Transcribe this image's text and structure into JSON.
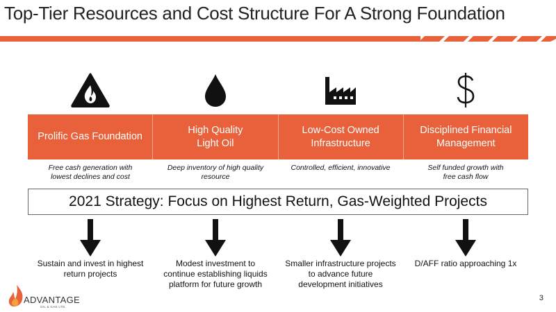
{
  "slide": {
    "title": "Top-Tier Resources and Cost Structure For A Strong Foundation",
    "page_number": "3"
  },
  "colors": {
    "accent": "#e8613a",
    "stripe": "#e8613a"
  },
  "pillars": [
    {
      "icon": "fire-warning-icon",
      "label": "Prolific Gas Foundation",
      "caption": "Free cash generation with\nlowest declines and cost"
    },
    {
      "icon": "oil-drop-icon",
      "label": "High Quality\nLight Oil",
      "caption": "Deep inventory of high quality\nresource"
    },
    {
      "icon": "factory-icon",
      "label": "Low-Cost Owned\nInfrastructure",
      "caption": "Controlled, efficient, innovative"
    },
    {
      "icon": "dollar-icon",
      "label": "Disciplined Financial\nManagement",
      "caption": "Self funded growth with\nfree cash flow"
    }
  ],
  "strategy": "2021 Strategy: Focus on Highest Return, Gas-Weighted Projects",
  "outcomes": [
    "Sustain and invest in highest\nreturn projects",
    "Modest investment to\ncontinue establishing liquids\nplatform for future growth",
    "Smaller infrastructure projects\nto advance future\ndevelopment initiatives",
    "D/AFF ratio approaching 1x"
  ],
  "logo": {
    "name": "ADVANTAGE",
    "tagline": "OIL & GAS LTD."
  }
}
